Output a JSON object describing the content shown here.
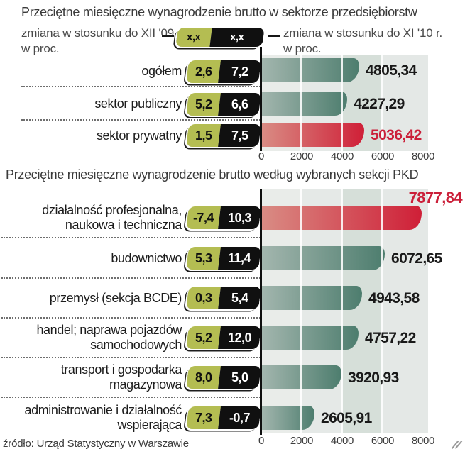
{
  "source": "źródło: Urząd Statystyczny w Warszawie",
  "legend": {
    "left_line1": "zmiana w stosunku do XII '09 r.",
    "left_line2": "w proc.",
    "right_line1": "zmiana w stosunku do XI '10 r.",
    "right_line2": "w proc.",
    "placeholder_green": "x,x",
    "placeholder_black": "x,x"
  },
  "colors": {
    "badge_green": "#b4bd52",
    "badge_black": "#101010",
    "bar_teal_start": "#a3b6ae",
    "bar_teal_end": "#4d7d6e",
    "bar_red_start": "#d98c84",
    "bar_red_end": "#cf1f37",
    "highlight_value_red": "#cb1f39"
  },
  "chart_data": [
    {
      "type": "bar",
      "title": "Przeciętne miesięczne wynagrodzenie brutto w sektorze przedsiębiorstw",
      "xlabel": "",
      "ylabel": "",
      "xlim": [
        0,
        8000
      ],
      "xticks": [
        "0",
        "2000",
        "4000",
        "6000",
        "8000"
      ],
      "grid": "white vertical lines every 2000",
      "rows": [
        {
          "category": "ogółem",
          "label_lines": [
            "ogółem"
          ],
          "change_vs_dec09": "2,6",
          "change_vs_nov10": "7,2",
          "value": 4805.34,
          "value_label": "4805,34",
          "bar": "teal"
        },
        {
          "category": "sektor publiczny",
          "label_lines": [
            "sektor publiczny"
          ],
          "change_vs_dec09": "5,2",
          "change_vs_nov10": "6,6",
          "value": 4227.29,
          "value_label": "4227,29",
          "bar": "teal"
        },
        {
          "category": "sektor prywatny",
          "label_lines": [
            "sektor prywatny"
          ],
          "change_vs_dec09": "1,5",
          "change_vs_nov10": "7,5",
          "value": 5036.42,
          "value_label": "5036,42",
          "bar": "red"
        }
      ]
    },
    {
      "type": "bar",
      "title": "Przeciętne miesięczne wynagrodzenie brutto według wybranych sekcji PKD",
      "xlabel": "",
      "ylabel": "",
      "xlim": [
        0,
        8000
      ],
      "xticks": [
        "0",
        "2000",
        "4000",
        "6000",
        "8000"
      ],
      "grid": "white vertical lines every 2000",
      "rows": [
        {
          "category": "działalność profesjonalna, naukowa i techniczna",
          "label_lines": [
            "działalność profesjonalna,",
            "naukowa i techniczna"
          ],
          "change_vs_dec09": "-7,4",
          "change_vs_nov10": "10,3",
          "value": 7877.84,
          "value_label": "7877,84",
          "bar": "red"
        },
        {
          "category": "budownictwo",
          "label_lines": [
            "budownictwo"
          ],
          "change_vs_dec09": "5,3",
          "change_vs_nov10": "11,4",
          "value": 6072.65,
          "value_label": "6072,65",
          "bar": "teal"
        },
        {
          "category": "przemysł (sekcja BCDE)",
          "label_lines": [
            "przemysł (sekcja BCDE)"
          ],
          "change_vs_dec09": "0,3",
          "change_vs_nov10": "5,4",
          "value": 4943.58,
          "value_label": "4943,58",
          "bar": "teal"
        },
        {
          "category": "handel; naprawa pojazdów samochodowych",
          "label_lines": [
            "handel; naprawa pojazdów",
            "samochodowych"
          ],
          "change_vs_dec09": "5,2",
          "change_vs_nov10": "12,0",
          "value": 4757.22,
          "value_label": "4757,22",
          "bar": "teal"
        },
        {
          "category": "transport i gospodarka magazynowa",
          "label_lines": [
            "transport i gospodarka",
            "magazynowa"
          ],
          "change_vs_dec09": "8,0",
          "change_vs_nov10": "5,0",
          "value": 3920.93,
          "value_label": "3920,93",
          "bar": "teal"
        },
        {
          "category": "administrowanie i działalność wspierająca",
          "label_lines": [
            "administrowanie i działalność",
            "wspierająca"
          ],
          "change_vs_dec09": "7,3",
          "change_vs_nov10": "-0,7",
          "value": 2605.91,
          "value_label": "2605,91",
          "bar": "teal"
        }
      ]
    }
  ]
}
